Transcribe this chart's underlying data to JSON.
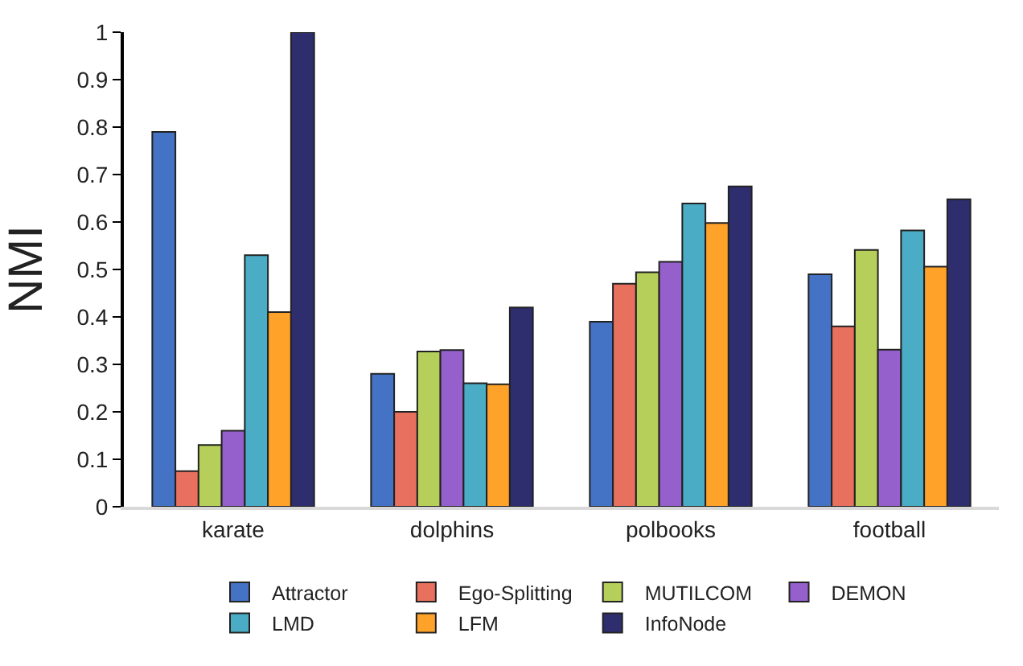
{
  "chart_data": {
    "type": "bar",
    "ylabel": "NMI",
    "categories": [
      "karate",
      "dolphins",
      "polbooks",
      "football"
    ],
    "series": [
      {
        "name": "Attractor",
        "color": "#4472c4",
        "values": [
          0.79,
          0.28,
          0.39,
          0.49
        ]
      },
      {
        "name": "Ego-Splitting",
        "color": "#e8705e",
        "values": [
          0.075,
          0.2,
          0.47,
          0.38
        ]
      },
      {
        "name": "MUTILCOM",
        "color": "#b5cf5a",
        "values": [
          0.13,
          0.327,
          0.494,
          0.541
        ]
      },
      {
        "name": "DEMON",
        "color": "#9660cc",
        "values": [
          0.16,
          0.33,
          0.516,
          0.331
        ]
      },
      {
        "name": "LMD",
        "color": "#4bacc6",
        "values": [
          0.53,
          0.26,
          0.639,
          0.582
        ]
      },
      {
        "name": "LFM",
        "color": "#ffa22a",
        "values": [
          0.41,
          0.258,
          0.598,
          0.506
        ]
      },
      {
        "name": "InfoNode",
        "color": "#2e2d6e",
        "values": [
          1.0,
          0.42,
          0.675,
          0.648
        ]
      }
    ],
    "ylim": [
      0,
      1
    ],
    "yticks": [
      0,
      0.1,
      0.2,
      0.3,
      0.4,
      0.5,
      0.6,
      0.7,
      0.8,
      0.9,
      1
    ],
    "legend": "bottom"
  }
}
